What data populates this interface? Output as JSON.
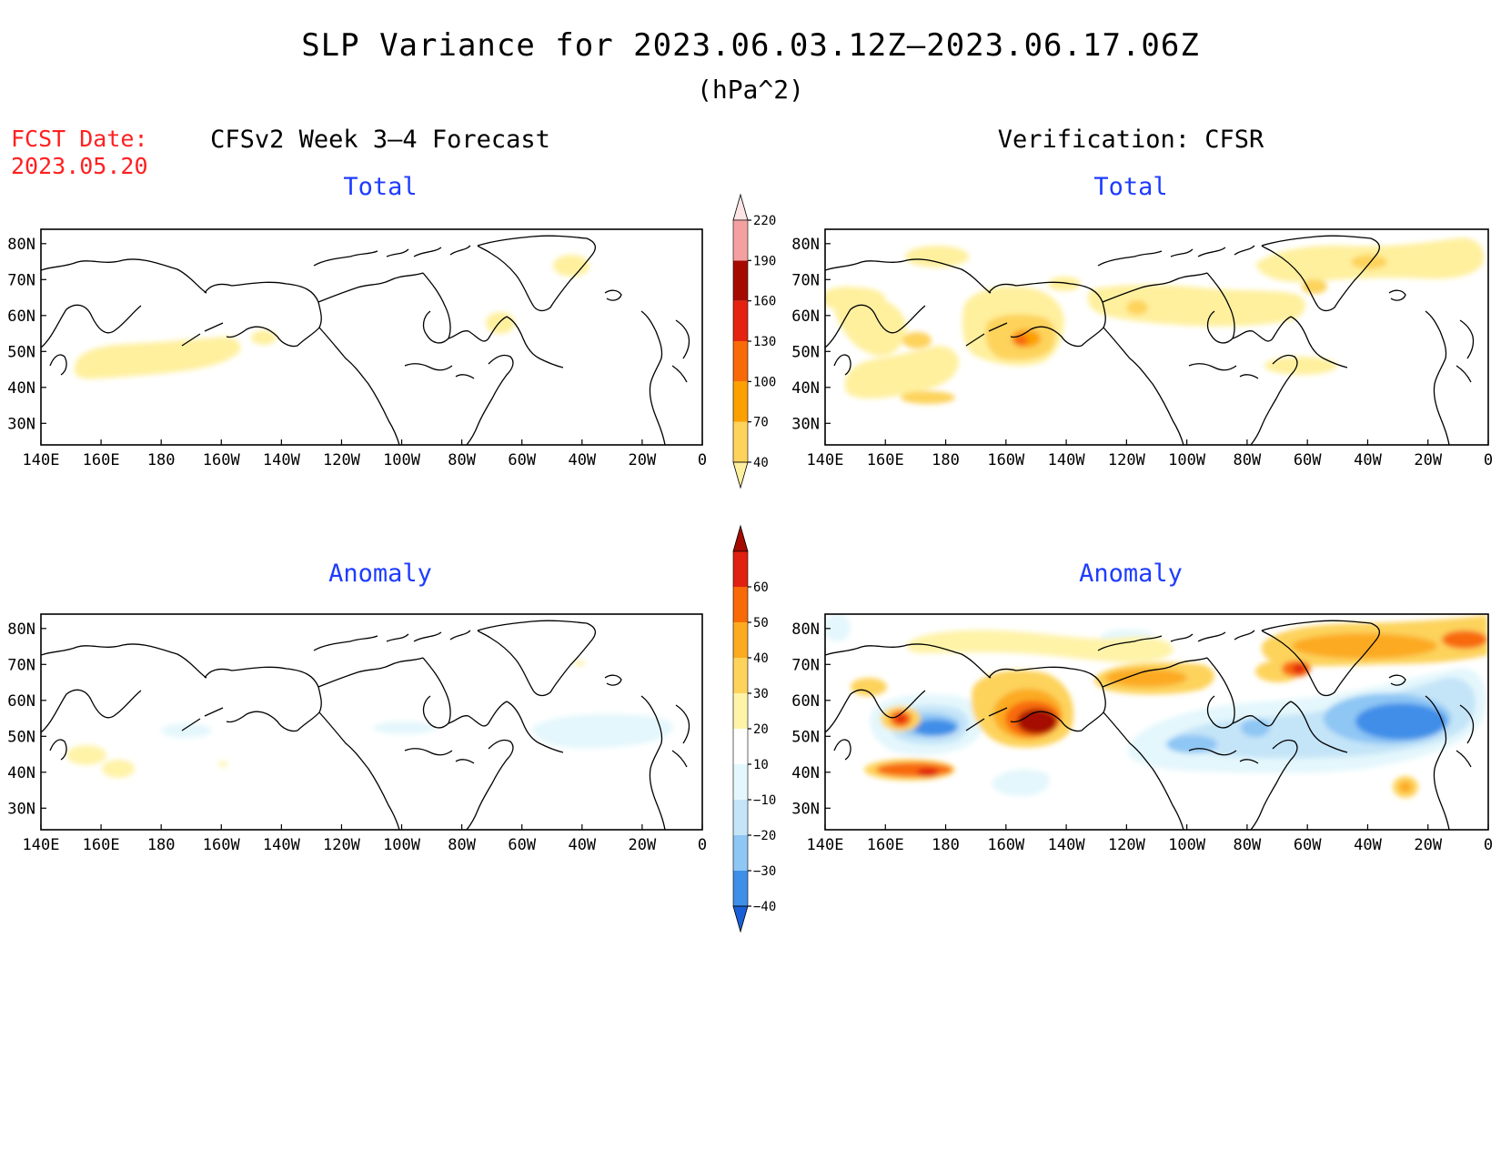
{
  "title": "SLP Variance for 2023.06.03.12Z–2023.06.17.06Z",
  "units": "(hPa^2)",
  "fcst_date_label": "FCST Date:",
  "fcst_date": "2023.05.20",
  "left_header": "CFSv2 Week 3–4 Forecast",
  "right_header": "Verification: CFSR",
  "panels": {
    "forecast_total": {
      "subtitle": "Total"
    },
    "verification_total": {
      "subtitle": "Total"
    },
    "forecast_anomaly": {
      "subtitle": "Anomaly"
    },
    "verification_anomaly": {
      "subtitle": "Anomaly"
    }
  },
  "x_ticks": [
    "140E",
    "160E",
    "180",
    "160W",
    "140W",
    "120W",
    "100W",
    "80W",
    "60W",
    "40W",
    "20W",
    "0"
  ],
  "y_ticks": [
    "80N",
    "70N",
    "60N",
    "50N",
    "40N",
    "30N"
  ],
  "total_colorbar": {
    "levels": [
      "40",
      "70",
      "100",
      "130",
      "160",
      "190",
      "220"
    ],
    "colors": [
      "#fff09e",
      "#fdd35c",
      "#fca000",
      "#f86a08",
      "#e52210",
      "#a50a00",
      "#f4a0a0",
      "#fde4e4"
    ]
  },
  "anomaly_colorbar": {
    "levels": [
      "−40",
      "−30",
      "−20",
      "−10",
      "10",
      "20",
      "30",
      "40",
      "50",
      "60"
    ],
    "colors": [
      "#1a5fd8",
      "#3f8ee8",
      "#8ec6f4",
      "#c4e4f8",
      "#e4f7fc",
      "#ffffff",
      "#fff3a8",
      "#fdd35c",
      "#fcaa20",
      "#f86a08",
      "#e02010",
      "#a50a00"
    ]
  }
}
